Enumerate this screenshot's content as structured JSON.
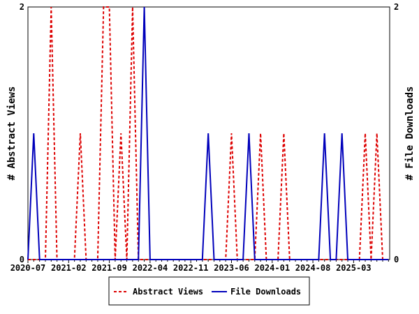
{
  "chart_data": {
    "type": "line",
    "title": "",
    "xlabel": "",
    "ylabel_left": "# Abstract Views",
    "ylabel_right": "# File Downloads",
    "ylim": [
      0,
      2
    ],
    "y_ticks_left": [
      "0",
      "2"
    ],
    "y_ticks_right": [
      "0",
      "2"
    ],
    "x_start": "2020-07",
    "x_tick_labels": [
      "2020-07",
      "2021-02",
      "2021-09",
      "2022-04",
      "2022-11",
      "2023-06",
      "2024-01",
      "2024-08",
      "2025-03"
    ],
    "legend_position": "bottom",
    "series": [
      {
        "name": "Abstract Views",
        "color": "#dd0000",
        "style": "dashed",
        "values": [
          0,
          0,
          0,
          0,
          2,
          0,
          0,
          0,
          0,
          1,
          0,
          0,
          0,
          2,
          2,
          0,
          1,
          0,
          2,
          0,
          0,
          0,
          0,
          0,
          0,
          0,
          0,
          0,
          0,
          0,
          0,
          0,
          0,
          0,
          0,
          1,
          0,
          0,
          0,
          0,
          1,
          0,
          0,
          0,
          1,
          0,
          0,
          0,
          0,
          0,
          0,
          0,
          0,
          0,
          0,
          0,
          0,
          0,
          1,
          0,
          1,
          0,
          0
        ]
      },
      {
        "name": "File Downloads",
        "color": "#0000bb",
        "style": "solid",
        "values": [
          0,
          1,
          0,
          0,
          0,
          0,
          0,
          0,
          0,
          0,
          0,
          0,
          0,
          0,
          0,
          0,
          0,
          0,
          0,
          0,
          2,
          0,
          0,
          0,
          0,
          0,
          0,
          0,
          0,
          0,
          0,
          1,
          0,
          0,
          0,
          0,
          0,
          0,
          1,
          0,
          0,
          0,
          0,
          0,
          0,
          0,
          0,
          0,
          0,
          0,
          0,
          1,
          0,
          0,
          1,
          0,
          0,
          0,
          0,
          0,
          0,
          0,
          0
        ]
      }
    ]
  }
}
